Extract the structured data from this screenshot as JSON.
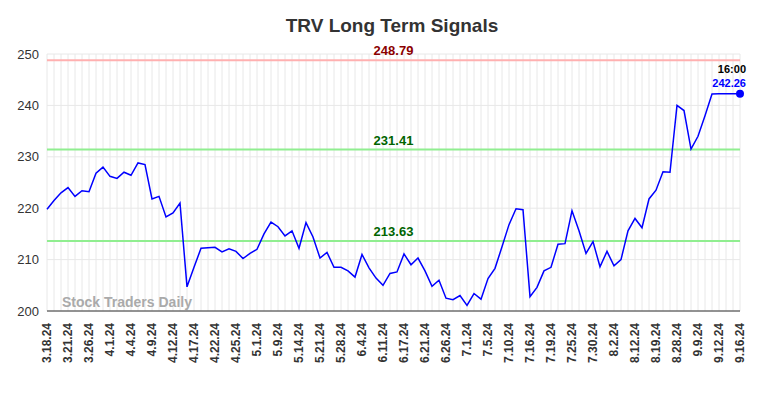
{
  "chart_data": {
    "type": "line",
    "title": "TRV Long Term Signals",
    "watermark": "Stock Traders Daily",
    "categories": [
      "3.18.24",
      null,
      null,
      "3.21.24",
      null,
      null,
      "3.26.24",
      null,
      null,
      "4.1.24",
      null,
      null,
      "4.4.24",
      null,
      null,
      "4.9.24",
      null,
      null,
      "4.12.24",
      null,
      null,
      "4.17.24",
      null,
      null,
      "4.22.24",
      null,
      null,
      "4.25.24",
      null,
      null,
      "5.1.24",
      null,
      null,
      "5.9.24",
      null,
      null,
      "5.14.24",
      null,
      null,
      "5.21.24",
      null,
      null,
      "5.28.24",
      null,
      null,
      "6.4.24",
      null,
      null,
      "6.11.24",
      null,
      null,
      "6.17.24",
      null,
      null,
      "6.21.24",
      null,
      null,
      "6.26.24",
      null,
      null,
      "7.1.24",
      null,
      null,
      "7.5.24",
      null,
      null,
      "7.10.24",
      null,
      null,
      "7.16.24",
      null,
      null,
      "7.19.24",
      null,
      null,
      "7.25.24",
      null,
      null,
      "7.30.24",
      null,
      null,
      "8.2.24",
      null,
      null,
      "8.12.24",
      null,
      null,
      "8.19.24",
      null,
      null,
      "8.28.24",
      null,
      null,
      "9.9.24",
      null,
      null,
      "9.12.24",
      null,
      null,
      "9.16.24"
    ],
    "values": [
      219.8,
      221.5,
      223,
      224,
      222.3,
      223.4,
      223.2,
      226.8,
      228,
      226.2,
      225.8,
      227,
      226.4,
      228.8,
      228.5,
      221.8,
      222.3,
      218.3,
      219.1,
      221,
      204.7,
      208.5,
      212.2,
      212.3,
      212.4,
      211.5,
      212.1,
      211.6,
      210.2,
      211.2,
      212,
      215,
      217.3,
      216.4,
      214.6,
      215.6,
      212.2,
      217.2,
      214.4,
      210.3,
      211.4,
      208.5,
      208.5,
      207.8,
      206.6,
      211,
      208.4,
      206.4,
      205,
      207.3,
      207.6,
      211.1,
      209,
      210.3,
      207.8,
      204.8,
      206,
      202.5,
      202.2,
      203,
      201.1,
      203.4,
      202.3,
      206.3,
      208.3,
      212.5,
      216.8,
      219.9,
      219.7,
      202.8,
      204.6,
      207.8,
      208.5,
      213,
      213.1,
      219.5,
      215.6,
      211.2,
      213.5,
      208.6,
      211.6,
      208.8,
      210,
      215.6,
      218,
      216.2,
      221.8,
      223.5,
      227.1,
      227,
      240,
      239,
      231.5,
      234,
      238,
      242.2,
      242.26,
      242.26,
      242.26,
      242.26
    ],
    "color": "#0000ff",
    "ylim": [
      200,
      250
    ],
    "yticks": [
      200,
      210,
      220,
      230,
      240,
      250
    ],
    "grid": true,
    "reference_lines": [
      {
        "value": 248.79,
        "color": "#ffb0b0",
        "label_color": "#8b0000"
      },
      {
        "value": 231.41,
        "color": "#90ee90",
        "label_color": "#006400"
      },
      {
        "value": 213.63,
        "color": "#90ee90",
        "label_color": "#006400"
      }
    ],
    "annotations": [
      {
        "text": "16:00",
        "color": "#000000"
      },
      {
        "text": "242.26",
        "color": "#0000ff"
      }
    ]
  }
}
